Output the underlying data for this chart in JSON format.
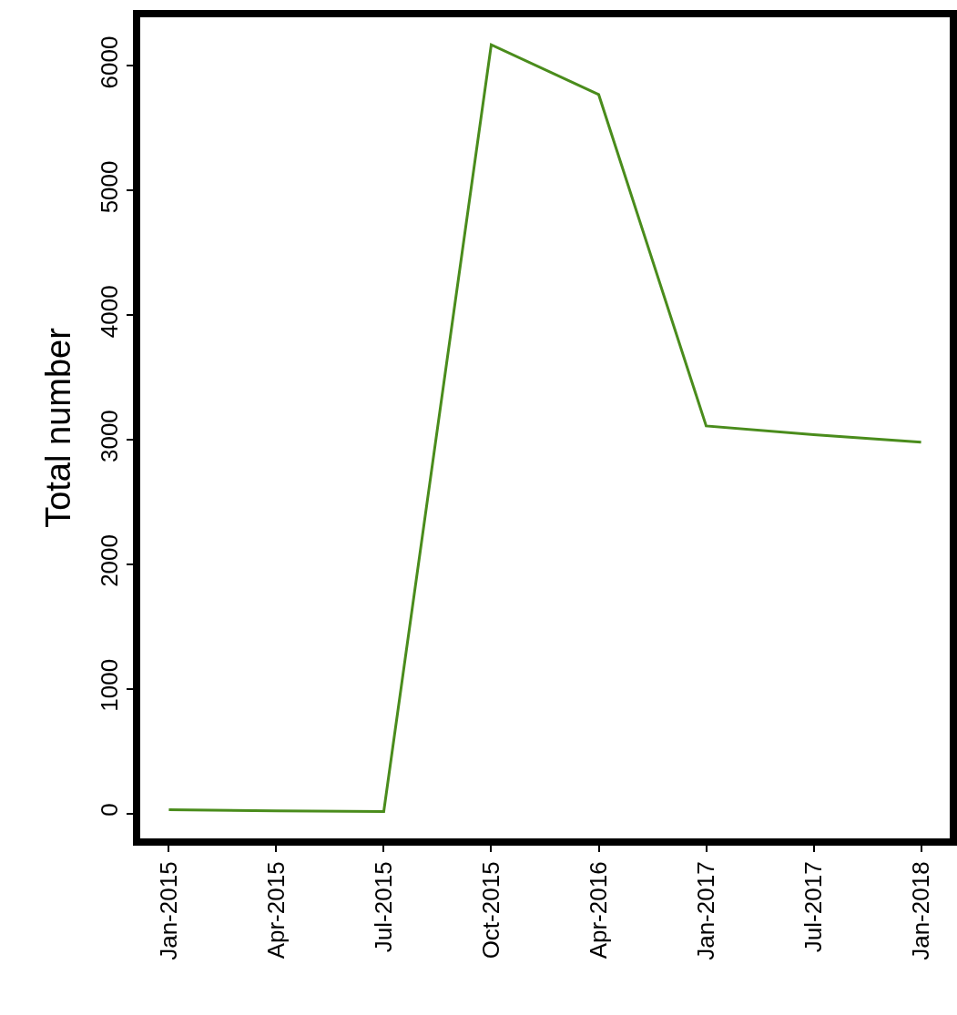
{
  "chart_data": {
    "type": "line",
    "ylabel": "Total number",
    "categories": [
      "Jan-2015",
      "Apr-2015",
      "Jul-2015",
      "Oct-2015",
      "Apr-2016",
      "Jan-2017",
      "Jul-2017",
      "Jan-2018"
    ],
    "series": [
      {
        "color": "#4a8c1c",
        "values": [
          30,
          20,
          15,
          6170,
          5770,
          3110,
          3040,
          2980
        ]
      }
    ],
    "ylim": [
      -230,
      6420
    ],
    "yticks": [
      0,
      1000,
      2000,
      3000,
      4000,
      5000,
      6000
    ],
    "marker": "none",
    "line_style": "solid"
  }
}
